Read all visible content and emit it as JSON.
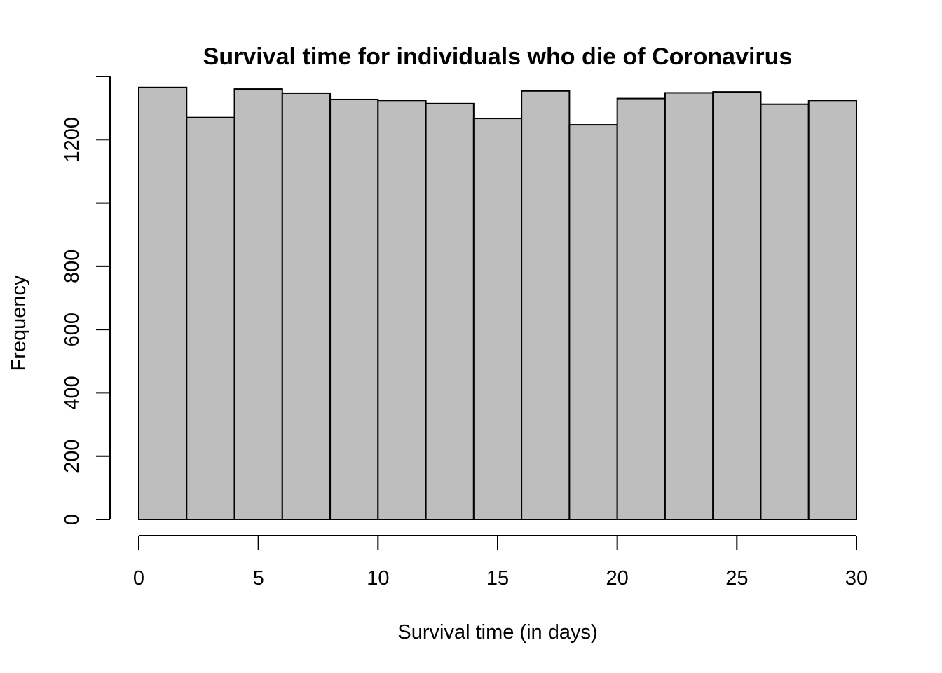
{
  "chart_data": {
    "type": "bar",
    "title": "Survival time for individuals who die of Coronavirus",
    "xlabel": "Survival time (in days)",
    "ylabel": "Frequency",
    "bin_edges": [
      0,
      2,
      4,
      6,
      8,
      10,
      12,
      14,
      16,
      18,
      20,
      22,
      24,
      26,
      28,
      30
    ],
    "values": [
      1365,
      1270,
      1360,
      1347,
      1327,
      1324,
      1314,
      1267,
      1354,
      1247,
      1330,
      1348,
      1351,
      1312,
      1324
    ],
    "xlim": [
      0,
      30
    ],
    "ylim": [
      0,
      1400
    ],
    "x_ticks": [
      0,
      5,
      10,
      15,
      20,
      25,
      30
    ],
    "y_ticks": [
      0,
      200,
      400,
      600,
      800,
      1000,
      1200,
      1400
    ],
    "y_tick_labels": [
      "0",
      "200",
      "400",
      "600",
      "800",
      "",
      "1200",
      ""
    ],
    "bar_color": "#bebebe",
    "grid": false,
    "legend": "none"
  }
}
